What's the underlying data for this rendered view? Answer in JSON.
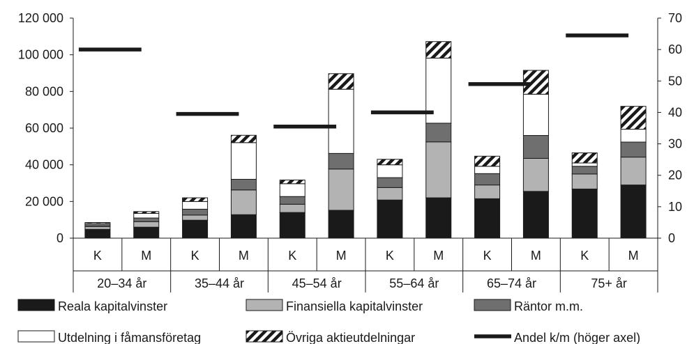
{
  "chart_data": {
    "type": "bar",
    "stacked": true,
    "groups": [
      {
        "label": "20–34 år",
        "subcategories": [
          "K",
          "M"
        ]
      },
      {
        "label": "35–44 år",
        "subcategories": [
          "K",
          "M"
        ]
      },
      {
        "label": "45–54 år",
        "subcategories": [
          "K",
          "M"
        ]
      },
      {
        "label": "55–64 år",
        "subcategories": [
          "K",
          "M"
        ]
      },
      {
        "label": "65–74 år",
        "subcategories": [
          "K",
          "M"
        ]
      },
      {
        "label": "75+ år",
        "subcategories": [
          "K",
          "M"
        ]
      }
    ],
    "series": [
      {
        "name": "Reala kapitalvinster",
        "color": "#1a1a1a",
        "fill": "solid",
        "values": [
          4800,
          6000,
          9800,
          12800,
          14000,
          15200,
          20800,
          22000,
          21500,
          25500,
          26800,
          29000
        ]
      },
      {
        "name": "Finansiella kapitalvinster",
        "color": "#b3b3b3",
        "fill": "solid",
        "values": [
          1500,
          3000,
          2800,
          13500,
          4500,
          22500,
          6800,
          30500,
          7500,
          18000,
          8200,
          15200
        ]
      },
      {
        "name": "Räntor m.m.",
        "color": "#6f6f6f",
        "fill": "solid",
        "values": [
          1000,
          2000,
          3200,
          5800,
          4200,
          8500,
          5400,
          10200,
          6200,
          12500,
          4200,
          8200
        ]
      },
      {
        "name": "Utdelning i fåmansföretag",
        "color": "#ffffff",
        "fill": "solid",
        "values": [
          700,
          2500,
          4200,
          20000,
          7000,
          35000,
          7000,
          35500,
          4000,
          22500,
          1800,
          7000
        ]
      },
      {
        "name": "Övriga aktieutdelningar",
        "color": "#1a1a1a",
        "fill": "hatch",
        "values": [
          500,
          1000,
          2000,
          4000,
          2000,
          8500,
          3000,
          9000,
          5500,
          13000,
          5500,
          12500
        ]
      }
    ],
    "line_series": {
      "name": "Andel k/m (höger axel)",
      "axis": "right",
      "values_by_group": [
        60,
        39.5,
        35.5,
        40,
        49,
        64.5
      ]
    },
    "y_left": {
      "min": 0,
      "max": 120000,
      "ticks": [
        "0",
        "20 000",
        "40 000",
        "60 000",
        "80 000",
        "100 000",
        "120 000"
      ]
    },
    "y_right": {
      "min": 0,
      "max": 70,
      "ticks": [
        "0",
        "10",
        "20",
        "30",
        "40",
        "50",
        "60",
        "70"
      ]
    },
    "legend_position": "bottom",
    "grid": false
  }
}
